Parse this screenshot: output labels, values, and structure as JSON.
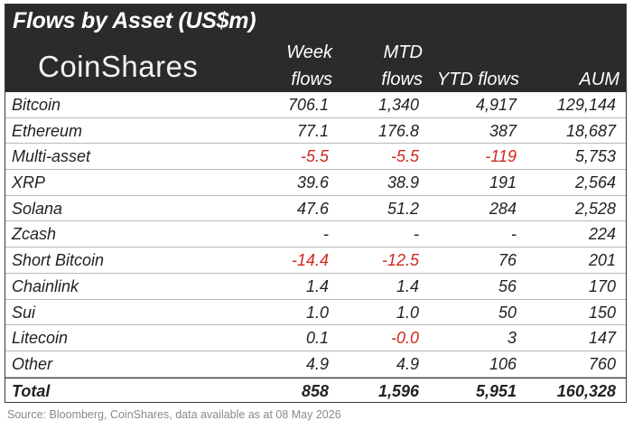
{
  "header": {
    "title": "Flows by Asset (US$m)",
    "logo": "CoinShares",
    "columns": {
      "week": [
        "Week",
        "flows"
      ],
      "mtd": [
        "MTD",
        "flows"
      ],
      "ytd": "YTD flows",
      "aum": "AUM"
    }
  },
  "rows": [
    {
      "name": "Bitcoin",
      "week": "706.1",
      "mtd": "1,340",
      "ytd": "4,917",
      "aum": "129,144"
    },
    {
      "name": "Ethereum",
      "week": "77.1",
      "mtd": "176.8",
      "ytd": "387",
      "aum": "18,687"
    },
    {
      "name": "Multi-asset",
      "week": "-5.5",
      "mtd": "-5.5",
      "ytd": "-119",
      "aum": "5,753"
    },
    {
      "name": "XRP",
      "week": "39.6",
      "mtd": "38.9",
      "ytd": "191",
      "aum": "2,564"
    },
    {
      "name": "Solana",
      "week": "47.6",
      "mtd": "51.2",
      "ytd": "284",
      "aum": "2,528"
    },
    {
      "name": "Zcash",
      "week": "-",
      "mtd": "-",
      "ytd": "-",
      "aum": "224"
    },
    {
      "name": "Short Bitcoin",
      "week": "-14.4",
      "mtd": "-12.5",
      "ytd": "76",
      "aum": "201"
    },
    {
      "name": "Chainlink",
      "week": "1.4",
      "mtd": "1.4",
      "ytd": "56",
      "aum": "170"
    },
    {
      "name": "Sui",
      "week": "1.0",
      "mtd": "1.0",
      "ytd": "50",
      "aum": "150"
    },
    {
      "name": "Litecoin",
      "week": "0.1",
      "mtd": "-0.0",
      "ytd": "3",
      "aum": "147"
    },
    {
      "name": "Other",
      "week": "4.9",
      "mtd": "4.9",
      "ytd": "106",
      "aum": "760"
    }
  ],
  "total": {
    "name": "Total",
    "week": "858",
    "mtd": "1,596",
    "ytd": "5,951",
    "aum": "160,328"
  },
  "source": "Source: Bloomberg, CoinShares, data available as at 08 May 2026",
  "colors": {
    "header_bg": "#2b2b2b",
    "negative": "#d0271d"
  }
}
